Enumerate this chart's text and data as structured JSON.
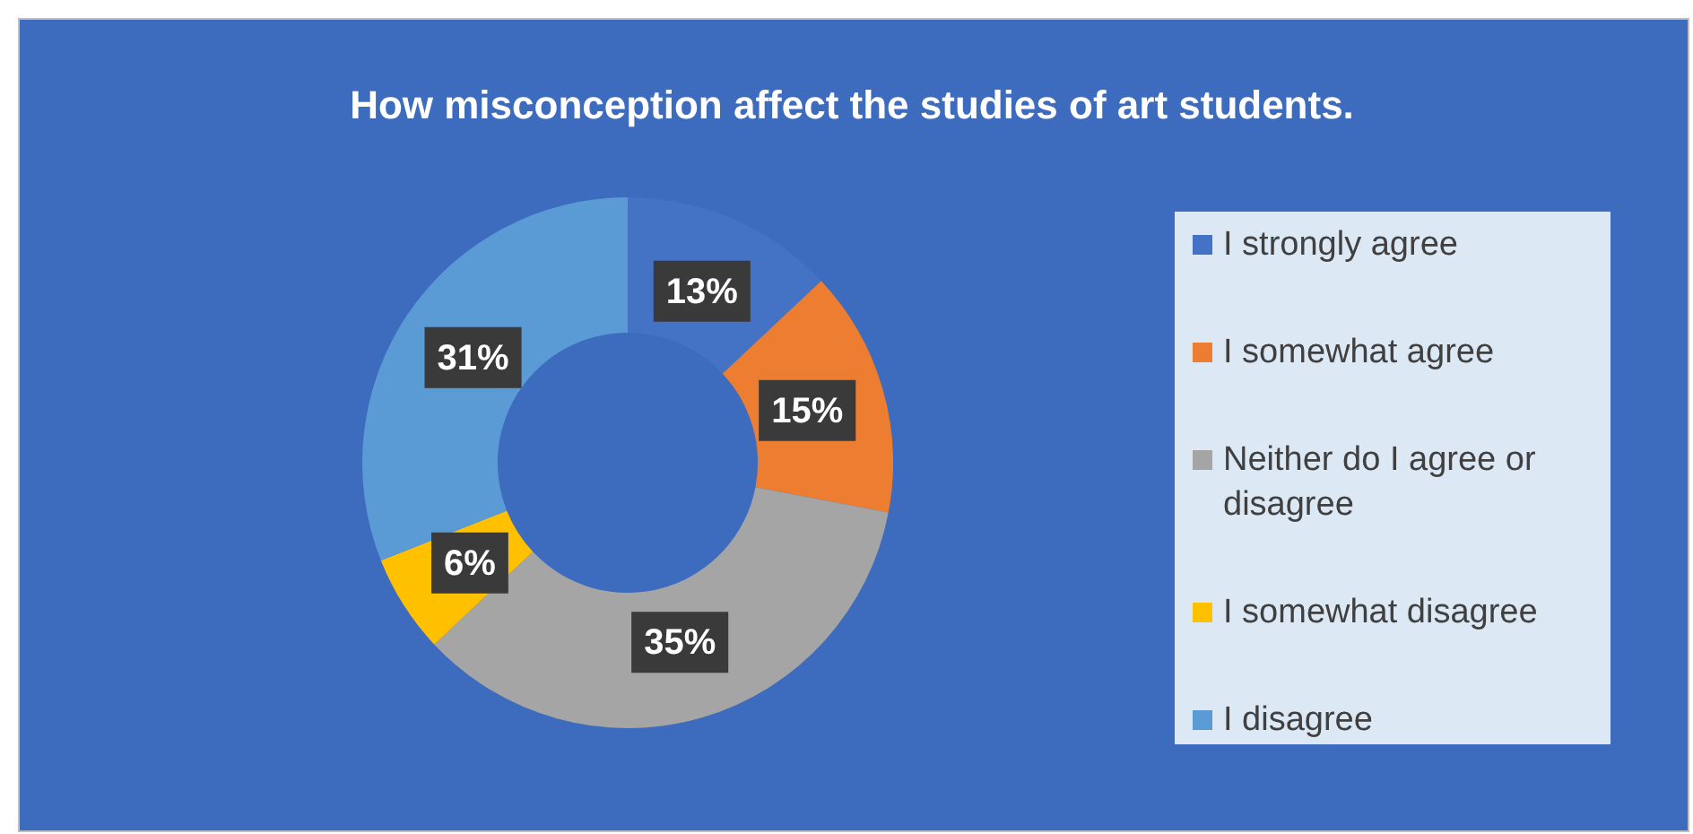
{
  "chart_data": {
    "type": "donut",
    "title": "How misconception affect the studies of art students.",
    "categories": [
      "I strongly agree",
      "I somewhat agree",
      "Neither do I agree or disagree",
      "I somewhat disagree",
      "I disagree"
    ],
    "values": [
      13,
      15,
      35,
      6,
      31
    ],
    "colors": [
      "#4472c4",
      "#ed7d31",
      "#a5a5a5",
      "#ffc000",
      "#5b9bd5"
    ],
    "value_labels": [
      "13%",
      "15%",
      "35%",
      "6%",
      "31%"
    ],
    "legend": "right"
  }
}
